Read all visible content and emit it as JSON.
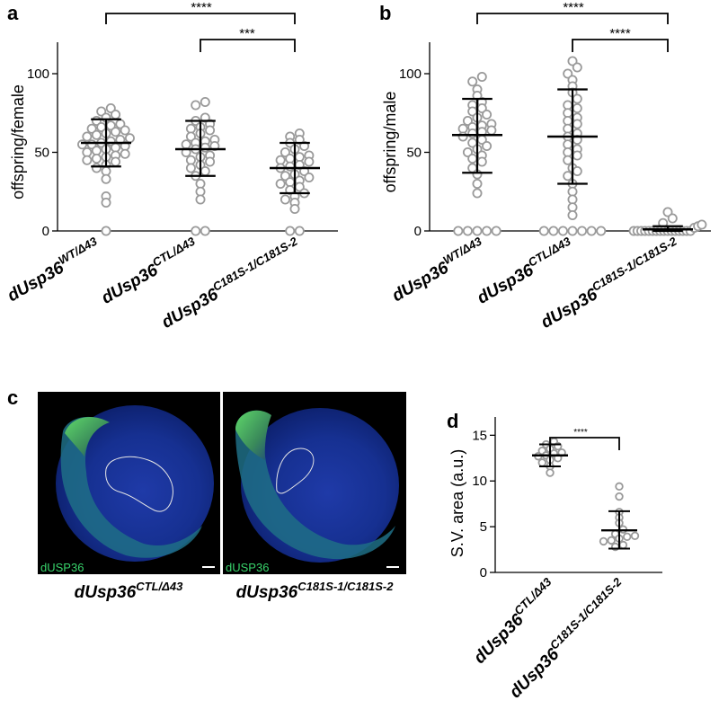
{
  "panel_labels": {
    "a": "a",
    "b": "b",
    "c": "c",
    "d": "d"
  },
  "genotypes": {
    "wt": {
      "base": "dUsp36",
      "sup": "WT/Δ43"
    },
    "ctl": {
      "base": "dUsp36",
      "sup": "CTL/Δ43"
    },
    "c181s": {
      "base": "dUsp36",
      "sup": "C181S-1/C181S-2"
    }
  },
  "micrograph": {
    "channel_label": "dUSP36"
  },
  "chart_data": [
    {
      "panel": "a",
      "type": "scatter",
      "ylabel": "offspring/female",
      "ylim": [
        0,
        120
      ],
      "yticks": [
        0,
        50,
        100
      ],
      "categories": [
        "WT/Δ43",
        "CTL/Δ43",
        "C181S-1/C181S-2"
      ],
      "series": [
        {
          "values": [
            0,
            18,
            22,
            33,
            38,
            40,
            42,
            44,
            45,
            46,
            47,
            48,
            49,
            50,
            51,
            52,
            53,
            54,
            55,
            55,
            56,
            57,
            58,
            59,
            60,
            61,
            62,
            63,
            64,
            65,
            66,
            67,
            68,
            70,
            72,
            74,
            76,
            78
          ],
          "mean": 56,
          "sd_low": 41,
          "sd_high": 71
        },
        {
          "values": [
            0,
            0,
            20,
            25,
            30,
            35,
            38,
            40,
            42,
            44,
            45,
            47,
            48,
            50,
            52,
            53,
            54,
            55,
            56,
            57,
            58,
            60,
            62,
            64,
            65,
            66,
            68,
            70,
            72,
            80,
            82
          ],
          "mean": 52,
          "sd_low": 35,
          "sd_high": 70
        },
        {
          "values": [
            0,
            0,
            14,
            18,
            20,
            22,
            24,
            26,
            28,
            30,
            31,
            32,
            34,
            35,
            36,
            38,
            40,
            41,
            42,
            44,
            45,
            46,
            47,
            48,
            50,
            52,
            54,
            56,
            58,
            60,
            62
          ],
          "mean": 40,
          "sd_low": 24,
          "sd_high": 56
        }
      ],
      "significance": [
        {
          "pair": [
            0,
            2
          ],
          "label": "****"
        },
        {
          "pair": [
            1,
            2
          ],
          "label": "***"
        }
      ]
    },
    {
      "panel": "b",
      "type": "scatter",
      "ylabel": "offspring/male",
      "ylim": [
        0,
        120
      ],
      "yticks": [
        0,
        50,
        100
      ],
      "categories": [
        "WT/Δ43",
        "CTL/Δ43",
        "C181S-1/C181S-2"
      ],
      "series": [
        {
          "values": [
            0,
            0,
            0,
            0,
            0,
            24,
            30,
            36,
            40,
            44,
            46,
            48,
            50,
            52,
            54,
            56,
            58,
            60,
            62,
            63,
            64,
            65,
            66,
            67,
            68,
            70,
            72,
            74,
            76,
            78,
            80,
            82,
            86,
            90,
            95,
            98
          ],
          "mean": 61,
          "sd_low": 37,
          "sd_high": 84
        },
        {
          "values": [
            0,
            0,
            0,
            0,
            0,
            0,
            0,
            10,
            15,
            20,
            25,
            30,
            35,
            38,
            40,
            45,
            48,
            50,
            52,
            55,
            58,
            60,
            62,
            65,
            68,
            70,
            72,
            75,
            78,
            80,
            84,
            88,
            92,
            96,
            100,
            104,
            108
          ],
          "mean": 60,
          "sd_low": 30,
          "sd_high": 90
        },
        {
          "values": [
            0,
            0,
            0,
            0,
            0,
            0,
            0,
            0,
            0,
            0,
            0,
            0,
            0,
            0,
            0,
            0,
            2,
            3,
            4,
            5,
            8,
            12
          ],
          "mean": 1,
          "sd_low": 0,
          "sd_high": 3
        }
      ],
      "significance": [
        {
          "pair": [
            0,
            2
          ],
          "label": "****"
        },
        {
          "pair": [
            1,
            2
          ],
          "label": "****"
        }
      ]
    },
    {
      "panel": "d",
      "type": "scatter",
      "ylabel": "S.V. area (a.u.)",
      "ylim": [
        0,
        17
      ],
      "yticks": [
        0,
        5,
        10,
        15
      ],
      "categories": [
        "CTL/Δ43",
        "C181S-1/C181S-2"
      ],
      "series": [
        {
          "values": [
            10.9,
            11.6,
            12.0,
            12.3,
            12.5,
            12.7,
            12.8,
            13.0,
            13.1,
            13.3,
            13.5,
            13.8,
            14.0,
            14.3
          ],
          "mean": 12.8,
          "sd_low": 11.6,
          "sd_high": 14.0
        },
        {
          "values": [
            2.8,
            3.0,
            3.4,
            3.5,
            3.7,
            3.9,
            4.0,
            4.2,
            4.7,
            5.4,
            6.0,
            6.6,
            8.3,
            9.4
          ],
          "mean": 4.6,
          "sd_low": 2.6,
          "sd_high": 6.7
        }
      ],
      "significance": [
        {
          "pair": [
            0,
            1
          ],
          "label": "****"
        }
      ]
    }
  ]
}
